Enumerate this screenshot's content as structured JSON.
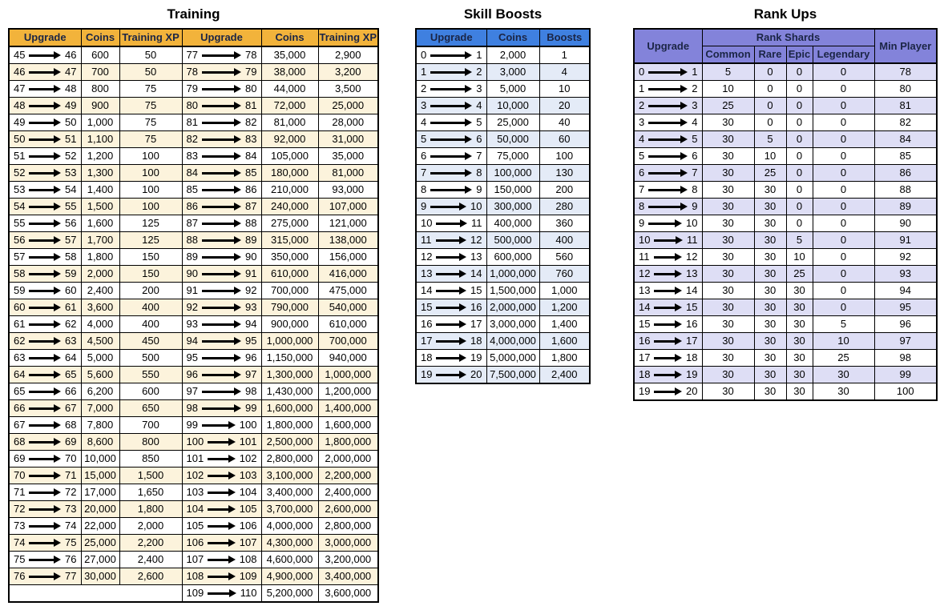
{
  "colors": {
    "training_header": "#F2B33B",
    "training_stripe": "#FCF3DC",
    "skill_header": "#3F80E0",
    "skill_stripe": "#E4EBF7",
    "rank_header": "#8383DA",
    "rank_stripe": "#DEDEF5",
    "header_text": "#1b2545",
    "border": "#000000"
  },
  "icons": {
    "upgrade_arrow": "right-arrow-icon"
  },
  "tables": {
    "training": {
      "title": "Training",
      "columns": [
        "Upgrade",
        "Coins",
        "Training XP",
        "Upgrade",
        "Coins",
        "Training XP"
      ],
      "left_rows": [
        [
          "45",
          "46",
          "600",
          "50"
        ],
        [
          "46",
          "47",
          "700",
          "50"
        ],
        [
          "47",
          "48",
          "800",
          "75"
        ],
        [
          "48",
          "49",
          "900",
          "75"
        ],
        [
          "49",
          "50",
          "1,000",
          "75"
        ],
        [
          "50",
          "51",
          "1,100",
          "75"
        ],
        [
          "51",
          "52",
          "1,200",
          "100"
        ],
        [
          "52",
          "53",
          "1,300",
          "100"
        ],
        [
          "53",
          "54",
          "1,400",
          "100"
        ],
        [
          "54",
          "55",
          "1,500",
          "100"
        ],
        [
          "55",
          "56",
          "1,600",
          "125"
        ],
        [
          "56",
          "57",
          "1,700",
          "125"
        ],
        [
          "57",
          "58",
          "1,800",
          "150"
        ],
        [
          "58",
          "59",
          "2,000",
          "150"
        ],
        [
          "59",
          "60",
          "2,400",
          "200"
        ],
        [
          "60",
          "61",
          "3,600",
          "400"
        ],
        [
          "61",
          "62",
          "4,000",
          "400"
        ],
        [
          "62",
          "63",
          "4,500",
          "450"
        ],
        [
          "63",
          "64",
          "5,000",
          "500"
        ],
        [
          "64",
          "65",
          "5,600",
          "550"
        ],
        [
          "65",
          "66",
          "6,200",
          "600"
        ],
        [
          "66",
          "67",
          "7,000",
          "650"
        ],
        [
          "67",
          "68",
          "7,800",
          "700"
        ],
        [
          "68",
          "69",
          "8,600",
          "800"
        ],
        [
          "69",
          "70",
          "10,000",
          "850"
        ],
        [
          "70",
          "71",
          "15,000",
          "1,500"
        ],
        [
          "71",
          "72",
          "17,000",
          "1,650"
        ],
        [
          "72",
          "73",
          "20,000",
          "1,800"
        ],
        [
          "73",
          "74",
          "22,000",
          "2,000"
        ],
        [
          "74",
          "75",
          "25,000",
          "2,200"
        ],
        [
          "75",
          "76",
          "27,000",
          "2,400"
        ],
        [
          "76",
          "77",
          "30,000",
          "2,600"
        ]
      ],
      "right_rows": [
        [
          "77",
          "78",
          "35,000",
          "2,900"
        ],
        [
          "78",
          "79",
          "38,000",
          "3,200"
        ],
        [
          "79",
          "80",
          "44,000",
          "3,500"
        ],
        [
          "80",
          "81",
          "72,000",
          "25,000"
        ],
        [
          "81",
          "82",
          "81,000",
          "28,000"
        ],
        [
          "82",
          "83",
          "92,000",
          "31,000"
        ],
        [
          "83",
          "84",
          "105,000",
          "35,000"
        ],
        [
          "84",
          "85",
          "180,000",
          "81,000"
        ],
        [
          "85",
          "86",
          "210,000",
          "93,000"
        ],
        [
          "86",
          "87",
          "240,000",
          "107,000"
        ],
        [
          "87",
          "88",
          "275,000",
          "121,000"
        ],
        [
          "88",
          "89",
          "315,000",
          "138,000"
        ],
        [
          "89",
          "90",
          "350,000",
          "156,000"
        ],
        [
          "90",
          "91",
          "610,000",
          "416,000"
        ],
        [
          "91",
          "92",
          "700,000",
          "475,000"
        ],
        [
          "92",
          "93",
          "790,000",
          "540,000"
        ],
        [
          "93",
          "94",
          "900,000",
          "610,000"
        ],
        [
          "94",
          "95",
          "1,000,000",
          "700,000"
        ],
        [
          "95",
          "96",
          "1,150,000",
          "940,000"
        ],
        [
          "96",
          "97",
          "1,300,000",
          "1,000,000"
        ],
        [
          "97",
          "98",
          "1,430,000",
          "1,200,000"
        ],
        [
          "98",
          "99",
          "1,600,000",
          "1,400,000"
        ],
        [
          "99",
          "100",
          "1,800,000",
          "1,600,000"
        ],
        [
          "100",
          "101",
          "2,500,000",
          "1,800,000"
        ],
        [
          "101",
          "102",
          "2,800,000",
          "2,000,000"
        ],
        [
          "102",
          "103",
          "3,100,000",
          "2,200,000"
        ],
        [
          "103",
          "104",
          "3,400,000",
          "2,400,000"
        ],
        [
          "104",
          "105",
          "3,700,000",
          "2,600,000"
        ],
        [
          "105",
          "106",
          "4,000,000",
          "2,800,000"
        ],
        [
          "106",
          "107",
          "4,300,000",
          "3,000,000"
        ],
        [
          "107",
          "108",
          "4,600,000",
          "3,200,000"
        ],
        [
          "108",
          "109",
          "4,900,000",
          "3,400,000"
        ],
        [
          "109",
          "110",
          "5,200,000",
          "3,600,000"
        ]
      ]
    },
    "skill_boosts": {
      "title": "Skill Boosts",
      "columns": [
        "Upgrade",
        "Coins",
        "Boosts"
      ],
      "rows": [
        [
          "0",
          "1",
          "2,000",
          "1"
        ],
        [
          "1",
          "2",
          "3,000",
          "4"
        ],
        [
          "2",
          "3",
          "5,000",
          "10"
        ],
        [
          "3",
          "4",
          "10,000",
          "20"
        ],
        [
          "4",
          "5",
          "25,000",
          "40"
        ],
        [
          "5",
          "6",
          "50,000",
          "60"
        ],
        [
          "6",
          "7",
          "75,000",
          "100"
        ],
        [
          "7",
          "8",
          "100,000",
          "130"
        ],
        [
          "8",
          "9",
          "150,000",
          "200"
        ],
        [
          "9",
          "10",
          "300,000",
          "280"
        ],
        [
          "10",
          "11",
          "400,000",
          "360"
        ],
        [
          "11",
          "12",
          "500,000",
          "400"
        ],
        [
          "12",
          "13",
          "600,000",
          "560"
        ],
        [
          "13",
          "14",
          "1,000,000",
          "760"
        ],
        [
          "14",
          "15",
          "1,500,000",
          "1,000"
        ],
        [
          "15",
          "16",
          "2,000,000",
          "1,200"
        ],
        [
          "16",
          "17",
          "3,000,000",
          "1,400"
        ],
        [
          "17",
          "18",
          "4,000,000",
          "1,600"
        ],
        [
          "18",
          "19",
          "5,000,000",
          "1,800"
        ],
        [
          "19",
          "20",
          "7,500,000",
          "2,400"
        ]
      ]
    },
    "rank_ups": {
      "title": "Rank Ups",
      "header": {
        "upgrade": "Upgrade",
        "rank_shards": "Rank Shards",
        "shard_types": [
          "Common",
          "Rare",
          "Epic",
          "Legendary"
        ],
        "min_player": "Min Player"
      },
      "rows": [
        [
          "0",
          "1",
          "5",
          "0",
          "0",
          "0",
          "78"
        ],
        [
          "1",
          "2",
          "10",
          "0",
          "0",
          "0",
          "80"
        ],
        [
          "2",
          "3",
          "25",
          "0",
          "0",
          "0",
          "81"
        ],
        [
          "3",
          "4",
          "30",
          "0",
          "0",
          "0",
          "82"
        ],
        [
          "4",
          "5",
          "30",
          "5",
          "0",
          "0",
          "84"
        ],
        [
          "5",
          "6",
          "30",
          "10",
          "0",
          "0",
          "85"
        ],
        [
          "6",
          "7",
          "30",
          "25",
          "0",
          "0",
          "86"
        ],
        [
          "7",
          "8",
          "30",
          "30",
          "0",
          "0",
          "88"
        ],
        [
          "8",
          "9",
          "30",
          "30",
          "0",
          "0",
          "89"
        ],
        [
          "9",
          "10",
          "30",
          "30",
          "0",
          "0",
          "90"
        ],
        [
          "10",
          "11",
          "30",
          "30",
          "5",
          "0",
          "91"
        ],
        [
          "11",
          "12",
          "30",
          "30",
          "10",
          "0",
          "92"
        ],
        [
          "12",
          "13",
          "30",
          "30",
          "25",
          "0",
          "93"
        ],
        [
          "13",
          "14",
          "30",
          "30",
          "30",
          "0",
          "94"
        ],
        [
          "14",
          "15",
          "30",
          "30",
          "30",
          "0",
          "95"
        ],
        [
          "15",
          "16",
          "30",
          "30",
          "30",
          "5",
          "96"
        ],
        [
          "16",
          "17",
          "30",
          "30",
          "30",
          "10",
          "97"
        ],
        [
          "17",
          "18",
          "30",
          "30",
          "30",
          "25",
          "98"
        ],
        [
          "18",
          "19",
          "30",
          "30",
          "30",
          "30",
          "99"
        ],
        [
          "19",
          "20",
          "30",
          "30",
          "30",
          "30",
          "100"
        ]
      ]
    }
  }
}
